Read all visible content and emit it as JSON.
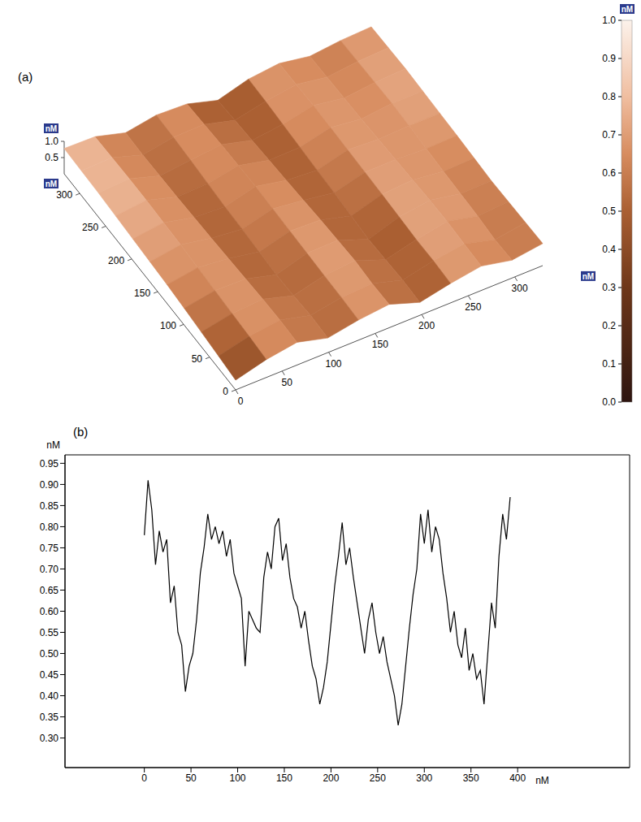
{
  "chart_data": [
    {
      "type": "surface",
      "title": "(a)",
      "x": [
        0,
        33,
        66,
        99,
        132,
        165,
        198,
        231,
        264,
        297,
        330
      ],
      "y": [
        0,
        33,
        66,
        99,
        132,
        165,
        198,
        231,
        264,
        297,
        330
      ],
      "z": [
        [
          0.3,
          0.55,
          0.7,
          0.45,
          0.62,
          0.72,
          0.4,
          0.6,
          0.75,
          0.55,
          0.68
        ],
        [
          0.38,
          0.6,
          0.72,
          0.48,
          0.65,
          0.7,
          0.42,
          0.63,
          0.77,
          0.52,
          0.66
        ],
        [
          0.45,
          0.64,
          0.7,
          0.42,
          0.66,
          0.74,
          0.38,
          0.62,
          0.8,
          0.58,
          0.64
        ],
        [
          0.52,
          0.68,
          0.66,
          0.4,
          0.68,
          0.7,
          0.35,
          0.65,
          0.78,
          0.6,
          0.62
        ],
        [
          0.58,
          0.72,
          0.62,
          0.44,
          0.7,
          0.66,
          0.4,
          0.68,
          0.74,
          0.62,
          0.65
        ],
        [
          0.62,
          0.76,
          0.58,
          0.48,
          0.72,
          0.6,
          0.45,
          0.7,
          0.7,
          0.66,
          0.68
        ],
        [
          0.66,
          0.78,
          0.55,
          0.5,
          0.74,
          0.55,
          0.48,
          0.72,
          0.66,
          0.7,
          0.7
        ],
        [
          0.7,
          0.8,
          0.52,
          0.55,
          0.72,
          0.5,
          0.52,
          0.74,
          0.62,
          0.72,
          0.72
        ],
        [
          0.74,
          0.8,
          0.5,
          0.6,
          0.7,
          0.45,
          0.56,
          0.76,
          0.6,
          0.7,
          0.74
        ],
        [
          0.76,
          0.78,
          0.48,
          0.64,
          0.66,
          0.4,
          0.6,
          0.74,
          0.58,
          0.68,
          0.72
        ],
        [
          0.78,
          0.76,
          0.5,
          0.66,
          0.62,
          0.35,
          0.62,
          0.72,
          0.56,
          0.66,
          0.7
        ]
      ],
      "xlim": [
        0,
        330
      ],
      "ylim": [
        0,
        330
      ],
      "xticks": [
        0,
        50,
        100,
        150,
        200,
        250,
        300
      ],
      "yticks": [
        0,
        50,
        100,
        150,
        200,
        250,
        300
      ],
      "zlim": [
        0,
        1
      ],
      "zticks": [
        0.5,
        {
          "value": 1,
          "label": "1.0"
        }
      ],
      "z_label": "nM",
      "colorbar": {
        "range": [
          0,
          1
        ],
        "label": "nM",
        "ticks": [
          {
            "value": 0,
            "label": "0.0"
          },
          0.1,
          0.2,
          0.3,
          0.4,
          0.5,
          0.6,
          0.7,
          0.8,
          0.9,
          {
            "value": 1,
            "label": "1.0"
          }
        ]
      }
    },
    {
      "type": "line",
      "title": "(b)",
      "color": "#000000",
      "x": [
        0,
        4,
        8,
        12,
        16,
        20,
        24,
        28,
        32,
        36,
        40,
        44,
        48,
        52,
        56,
        60,
        64,
        68,
        72,
        76,
        80,
        84,
        88,
        92,
        96,
        100,
        104,
        108,
        112,
        116,
        120,
        124,
        128,
        132,
        136,
        140,
        144,
        148,
        152,
        156,
        160,
        164,
        168,
        172,
        176,
        180,
        184,
        188,
        192,
        196,
        200,
        204,
        208,
        212,
        216,
        220,
        224,
        228,
        232,
        236,
        240,
        244,
        248,
        252,
        256,
        260,
        264,
        268,
        272,
        276,
        280,
        284,
        288,
        292,
        296,
        300,
        304,
        308,
        312,
        316,
        320,
        324,
        328,
        332,
        336,
        340,
        344,
        348,
        352,
        356,
        360,
        364,
        368,
        372,
        376,
        380,
        384,
        388,
        392
      ],
      "values": [
        0.78,
        0.91,
        0.84,
        0.71,
        0.79,
        0.74,
        0.77,
        0.62,
        0.66,
        0.55,
        0.52,
        0.41,
        0.47,
        0.5,
        0.58,
        0.69,
        0.75,
        0.83,
        0.77,
        0.8,
        0.76,
        0.79,
        0.73,
        0.77,
        0.69,
        0.66,
        0.63,
        0.47,
        0.6,
        0.58,
        0.56,
        0.55,
        0.68,
        0.74,
        0.7,
        0.8,
        0.82,
        0.72,
        0.76,
        0.68,
        0.63,
        0.61,
        0.56,
        0.6,
        0.53,
        0.47,
        0.44,
        0.38,
        0.42,
        0.48,
        0.57,
        0.66,
        0.73,
        0.81,
        0.71,
        0.75,
        0.68,
        0.62,
        0.56,
        0.5,
        0.58,
        0.62,
        0.55,
        0.5,
        0.54,
        0.48,
        0.44,
        0.4,
        0.33,
        0.38,
        0.47,
        0.56,
        0.64,
        0.7,
        0.83,
        0.76,
        0.84,
        0.74,
        0.8,
        0.77,
        0.69,
        0.63,
        0.55,
        0.6,
        0.52,
        0.49,
        0.56,
        0.46,
        0.5,
        0.44,
        0.46,
        0.38,
        0.5,
        0.62,
        0.56,
        0.73,
        0.83,
        0.77,
        0.87
      ],
      "xlim": [
        -85,
        520
      ],
      "ylim": [
        0.23,
        0.97
      ],
      "xticks": [
        0,
        50,
        100,
        150,
        200,
        250,
        300,
        350,
        400
      ],
      "yticks": [
        {
          "value": 0.3,
          "label": "0.30"
        },
        0.35,
        {
          "value": 0.4,
          "label": "0.40"
        },
        0.45,
        {
          "value": 0.5,
          "label": "0.50"
        },
        0.55,
        {
          "value": 0.6,
          "label": "0.60"
        },
        0.65,
        {
          "value": 0.7,
          "label": "0.70"
        },
        0.75,
        {
          "value": 0.8,
          "label": "0.80"
        },
        0.85,
        {
          "value": 0.9,
          "label": "0.90"
        },
        0.95
      ],
      "x_label": "nM",
      "y_label": "nM"
    }
  ]
}
